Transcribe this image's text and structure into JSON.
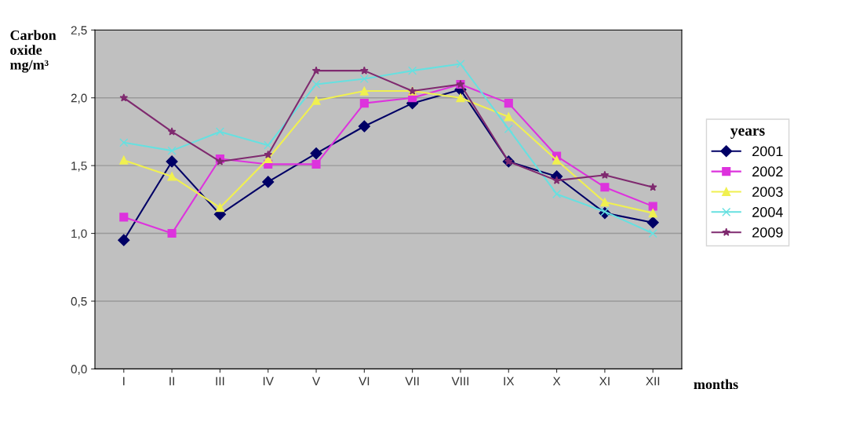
{
  "chart_data": {
    "type": "line",
    "ylabel": "Carbon\noxide\nmg/m³",
    "xlabel": "months",
    "legend_title": "years",
    "legend": "right",
    "grid": "y",
    "categories": [
      "I",
      "II",
      "III",
      "IV",
      "V",
      "VI",
      "VII",
      "VIII",
      "IX",
      "X",
      "XI",
      "XII"
    ],
    "ylim": [
      0,
      2.5
    ],
    "yticks": [
      {
        "value": 0,
        "label": "0,0"
      },
      {
        "value": 0.5,
        "label": "0,5"
      },
      {
        "value": 1,
        "label": "1,0"
      },
      {
        "value": 1.5,
        "label": "1,5"
      },
      {
        "value": 2,
        "label": "2,0"
      },
      {
        "value": 2.5,
        "label": "2,5"
      }
    ],
    "series": [
      {
        "name": "2001",
        "color": "#000066",
        "marker": "diamond",
        "values": [
          0.95,
          1.53,
          1.14,
          1.38,
          1.59,
          1.79,
          1.96,
          2.06,
          1.53,
          1.42,
          1.15,
          1.08
        ]
      },
      {
        "name": "2002",
        "color": "#dd33dd",
        "marker": "square",
        "values": [
          1.12,
          1.0,
          1.55,
          1.51,
          1.51,
          1.96,
          2.0,
          2.1,
          1.96,
          1.57,
          1.34,
          1.2
        ]
      },
      {
        "name": "2003",
        "color": "#f0f050",
        "marker": "triangle",
        "values": [
          1.54,
          1.42,
          1.19,
          1.55,
          1.98,
          2.05,
          2.05,
          2.0,
          1.86,
          1.54,
          1.23,
          1.15
        ]
      },
      {
        "name": "2004",
        "color": "#66e0e0",
        "marker": "cross",
        "values": [
          1.67,
          1.61,
          1.75,
          1.65,
          2.1,
          2.14,
          2.2,
          2.25,
          1.77,
          1.29,
          1.16,
          1.0
        ]
      },
      {
        "name": "2009",
        "color": "#7f2a6f",
        "marker": "star",
        "values": [
          2.0,
          1.75,
          1.53,
          1.58,
          2.2,
          2.2,
          2.05,
          2.1,
          1.53,
          1.39,
          1.43,
          1.34
        ]
      }
    ]
  }
}
